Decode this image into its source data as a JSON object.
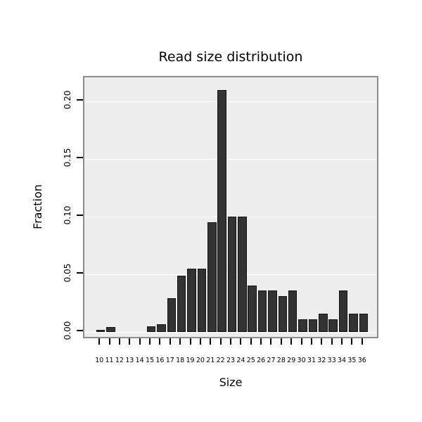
{
  "chart_data": {
    "type": "bar",
    "title": "Read size distribution",
    "xlabel": "Size",
    "ylabel": "Fraction",
    "categories": [
      "10",
      "11",
      "12",
      "13",
      "14",
      "15",
      "16",
      "17",
      "18",
      "19",
      "20",
      "21",
      "22",
      "23",
      "24",
      "25",
      "26",
      "27",
      "28",
      "29",
      "30",
      "31",
      "32",
      "33",
      "34",
      "35",
      "36"
    ],
    "values": [
      0.002,
      0.004,
      0,
      0,
      0,
      0.005,
      0.007,
      0.029,
      0.049,
      0.055,
      0.055,
      0.095,
      0.21,
      0.1,
      0.1,
      0.04,
      0.036,
      0.036,
      0.031,
      0.036,
      0.011,
      0.011,
      0.016,
      0.011,
      0.036,
      0.016,
      0.016
    ],
    "ylim": [
      0,
      0.225
    ],
    "yticks": [
      "0.00",
      "0.05",
      "0.10",
      "0.15",
      "0.20"
    ],
    "grid": true,
    "legend": "none",
    "bar_color": "#333333",
    "panel_bg": "#ededed"
  }
}
